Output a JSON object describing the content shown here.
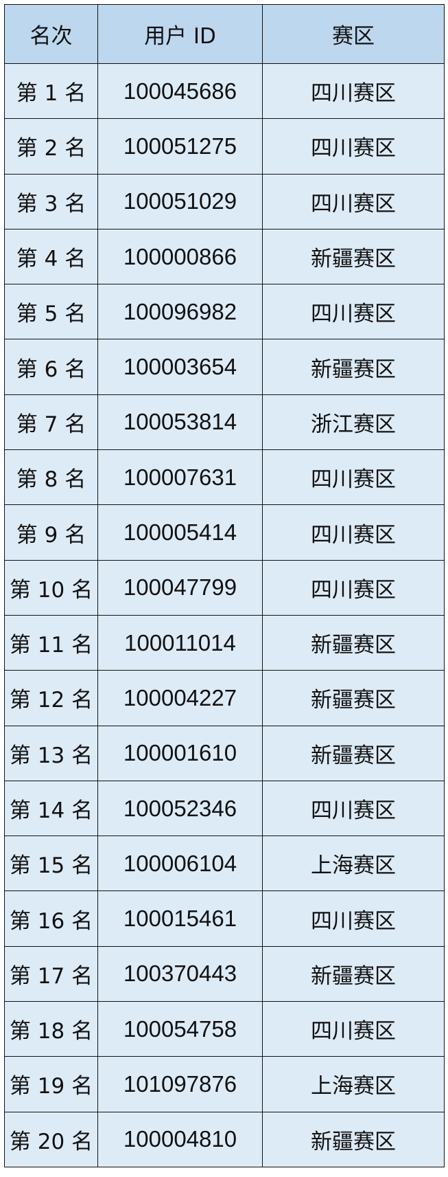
{
  "colors": {
    "header_bg": "#bdd7ee",
    "body_bg": "#ddebf7",
    "border": "#111111"
  },
  "headers": [
    "名次",
    "用户 ID",
    "赛区"
  ],
  "rows": [
    {
      "rank": "第 1 名",
      "id": "100045686",
      "region": "四川赛区"
    },
    {
      "rank": "第 2 名",
      "id": "100051275",
      "region": "四川赛区"
    },
    {
      "rank": "第 3 名",
      "id": "100051029",
      "region": "四川赛区"
    },
    {
      "rank": "第 4 名",
      "id": "100000866",
      "region": "新疆赛区"
    },
    {
      "rank": "第 5 名",
      "id": "100096982",
      "region": "四川赛区"
    },
    {
      "rank": "第 6 名",
      "id": "100003654",
      "region": "新疆赛区"
    },
    {
      "rank": "第 7 名",
      "id": "100053814",
      "region": "浙江赛区"
    },
    {
      "rank": "第 8 名",
      "id": "100007631",
      "region": "四川赛区"
    },
    {
      "rank": "第 9 名",
      "id": "100005414",
      "region": "四川赛区"
    },
    {
      "rank": "第 10 名",
      "id": "100047799",
      "region": "四川赛区"
    },
    {
      "rank": "第 11 名",
      "id": "100011014",
      "region": "新疆赛区"
    },
    {
      "rank": "第 12 名",
      "id": "100004227",
      "region": "新疆赛区"
    },
    {
      "rank": "第 13 名",
      "id": "100001610",
      "region": "新疆赛区"
    },
    {
      "rank": "第 14 名",
      "id": "100052346",
      "region": "四川赛区"
    },
    {
      "rank": "第 15 名",
      "id": "100006104",
      "region": "上海赛区"
    },
    {
      "rank": "第 16 名",
      "id": "100015461",
      "region": "四川赛区"
    },
    {
      "rank": "第 17 名",
      "id": "100370443",
      "region": "新疆赛区"
    },
    {
      "rank": "第 18 名",
      "id": "100054758",
      "region": "四川赛区"
    },
    {
      "rank": "第 19 名",
      "id": "101097876",
      "region": "上海赛区"
    },
    {
      "rank": "第 20 名",
      "id": "100004810",
      "region": "新疆赛区"
    }
  ]
}
